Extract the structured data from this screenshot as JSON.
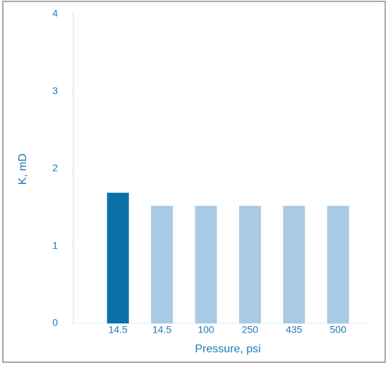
{
  "chart_data": {
    "type": "bar",
    "categories": [
      "14.5",
      "14.5",
      "100",
      "250",
      "435",
      "500"
    ],
    "values": [
      1.69,
      1.52,
      1.52,
      1.52,
      1.52,
      1.52
    ],
    "colors": [
      "#0b72a9",
      "#a8cbe3",
      "#a8cbe3",
      "#a8cbe3",
      "#a8cbe3",
      "#a8cbe3"
    ],
    "x_label": "Pressure, psi",
    "y_label": "K, mD",
    "ylim": [
      0,
      4
    ],
    "yticks": [
      0,
      1,
      2,
      3,
      4
    ],
    "grid": false
  }
}
